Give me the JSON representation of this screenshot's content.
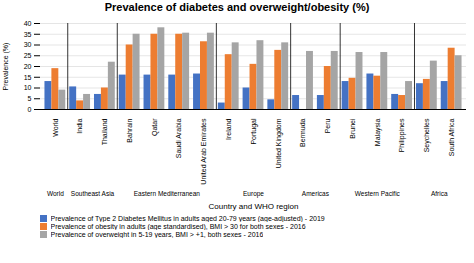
{
  "chart_data": {
    "type": "bar",
    "title": "Prevalence of diabetes and overweight/obesity (%)",
    "xlabel": "Country and WHO region",
    "ylabel": "Prevalence (%)",
    "categories": [
      "World",
      "India",
      "Thailand",
      "Bahrain",
      "Qatar",
      "Saudi Arabia",
      "United Arab Emirates",
      "Ireland",
      "Portugal",
      "United Kingdom",
      "Bermuda",
      "Peru",
      "Brunei",
      "Malaysia",
      "Philippines",
      "Seychelles",
      "South Africa"
    ],
    "regions": [
      "World",
      "Southeast Asia",
      "Southeast Asia",
      "Eastern Mediterranean",
      "Eastern Mediterranean",
      "Eastern Mediterranean",
      "Eastern Mediterranean",
      "Europe",
      "Europe",
      "Europe",
      "Americas",
      "Americas",
      "Western Pacific",
      "Western Pacific",
      "Western Pacific",
      "Africa",
      "Africa"
    ],
    "series": [
      {
        "name": "Prevalence of Type 2 Diabetes Mellitus in adults aged 20-79 years (age-adjusted) - 2019",
        "color": "#4472C4",
        "values": [
          13,
          10.5,
          7,
          16,
          16,
          16,
          16.5,
          3,
          10,
          4.5,
          6.5,
          6.5,
          13,
          16.5,
          7,
          12,
          13
        ]
      },
      {
        "name": "Prevalence of obesity in adults (age standardised), BMI > 30 for both sexes - 2016",
        "color": "#ED7D31",
        "values": [
          19,
          4,
          10,
          30,
          35,
          35,
          31.5,
          25.5,
          21,
          27.5,
          0,
          20,
          14.5,
          15.5,
          6.5,
          14,
          28.5
        ]
      },
      {
        "name": "Prevalence of overweight in 5-19 years, BMI > +1, both sexes - 2016",
        "color": "#A5A5A5",
        "values": [
          9,
          7,
          22,
          35,
          38,
          35.5,
          35.5,
          31,
          32,
          31,
          27,
          27,
          26.5,
          26.5,
          13,
          22.5,
          25
        ]
      }
    ],
    "ylim": [
      0,
      40
    ],
    "yticks": [
      0,
      5,
      10,
      15,
      20,
      25,
      30,
      35,
      40
    ],
    "grid": true
  }
}
